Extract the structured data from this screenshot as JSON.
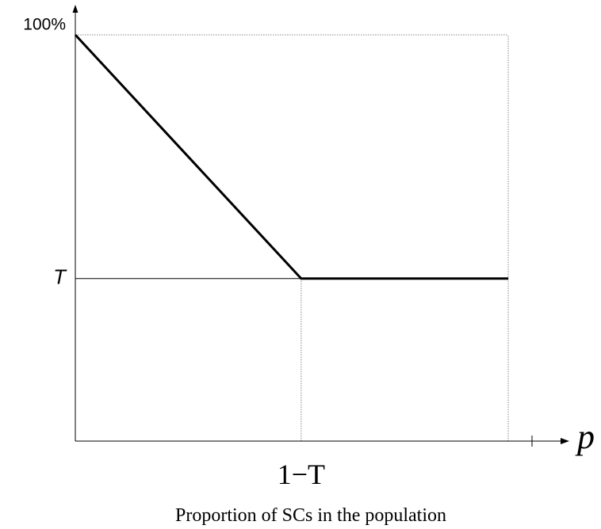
{
  "chart_data": {
    "type": "line",
    "title": "",
    "xlabel_symbol": "p",
    "caption": "Proportion of SCs in the population",
    "x_ticks": [
      {
        "value": 0.6,
        "label": "1−T"
      }
    ],
    "y_ticks": [
      {
        "value": 1.0,
        "label": "100%"
      },
      {
        "value": 0.4,
        "label": "T"
      }
    ],
    "xlim": [
      0,
      1.15
    ],
    "ylim": [
      0,
      1.0
    ],
    "series": [
      {
        "x": [
          0,
          0.6,
          1.15
        ],
        "y": [
          1.0,
          0.4,
          0.4
        ]
      }
    ],
    "guides": {
      "dotted_top": {
        "y": 1.0,
        "x_from": 0,
        "x_to": 1.15
      },
      "dotted_right": {
        "x": 1.15,
        "y_from": 0,
        "y_to": 1.0
      },
      "dotted_vertical": {
        "x": 0.6,
        "y_from": 0,
        "y_to": 0.4
      },
      "solid_horizontal": {
        "y": 0.4,
        "x_from": 0,
        "x_to": 0.6
      }
    },
    "grid": false,
    "legend": "none"
  }
}
